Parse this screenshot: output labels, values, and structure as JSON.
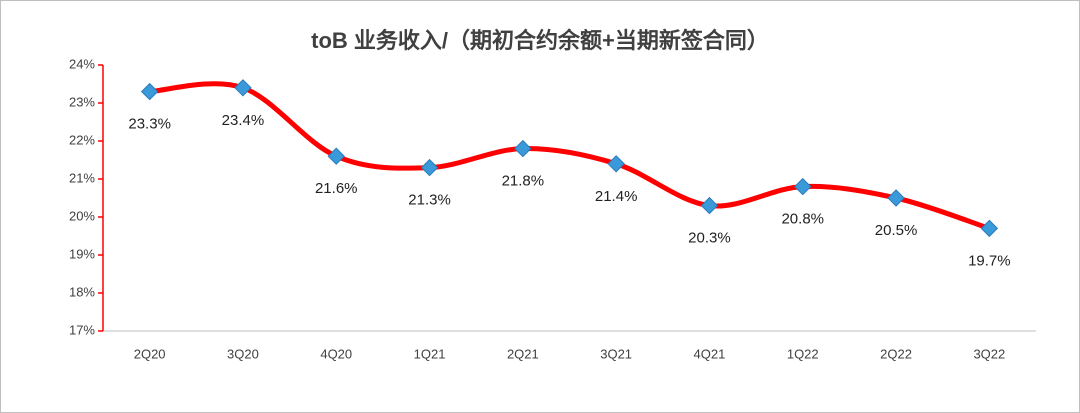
{
  "chart_data": {
    "type": "line",
    "title": "toB 业务收入/（期初合约余额+当期新签合同）",
    "categories": [
      "2Q20",
      "3Q20",
      "4Q20",
      "1Q21",
      "2Q21",
      "3Q21",
      "4Q21",
      "1Q22",
      "2Q22",
      "3Q22"
    ],
    "values": [
      23.3,
      23.4,
      21.6,
      21.3,
      21.8,
      21.4,
      20.3,
      20.8,
      20.5,
      19.7
    ],
    "value_labels": [
      "23.3%",
      "23.4%",
      "21.6%",
      "21.3%",
      "21.8%",
      "21.4%",
      "20.3%",
      "20.8%",
      "20.5%",
      "19.7%"
    ],
    "color": "#ff0000",
    "marker_color": "#3a9ad9",
    "ylim": [
      17,
      24
    ],
    "yticks": [
      {
        "value": 17,
        "label": "17%"
      },
      {
        "value": 18,
        "label": "18%"
      },
      {
        "value": 19,
        "label": "19%"
      },
      {
        "value": 20,
        "label": "20%"
      },
      {
        "value": 21,
        "label": "21%"
      },
      {
        "value": 22,
        "label": "22%"
      },
      {
        "value": 23,
        "label": "23%"
      },
      {
        "value": 24,
        "label": "24%"
      }
    ],
    "grid": false
  }
}
